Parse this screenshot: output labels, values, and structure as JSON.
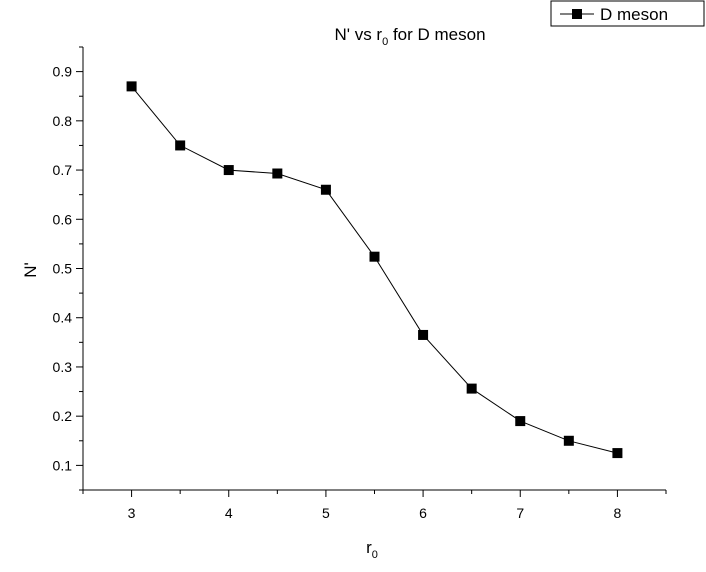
{
  "chart_data": {
    "type": "line",
    "title": {
      "main": "N' vs r",
      "sub": "0",
      "rest": " for D meson"
    },
    "xlabel": {
      "main": "r",
      "sub": "0"
    },
    "ylabel": "N'",
    "xlim": [
      2.5,
      8.5
    ],
    "ylim": [
      0.05,
      0.95
    ],
    "xticks": [
      "3",
      "4",
      "5",
      "6",
      "7",
      "8"
    ],
    "yticks": [
      "0.1",
      "0.2",
      "0.3",
      "0.4",
      "0.5",
      "0.6",
      "0.7",
      "0.8",
      "0.9"
    ],
    "grid": false,
    "legend_position": "top-right",
    "series": [
      {
        "name": "D meson",
        "color": "#000000",
        "marker": "square",
        "x": [
          3,
          3.5,
          4,
          4.5,
          5,
          5.5,
          6,
          6.5,
          7,
          7.5,
          8
        ],
        "y": [
          0.87,
          0.75,
          0.7,
          0.693,
          0.66,
          0.524,
          0.365,
          0.256,
          0.19,
          0.15,
          0.125
        ]
      }
    ]
  }
}
